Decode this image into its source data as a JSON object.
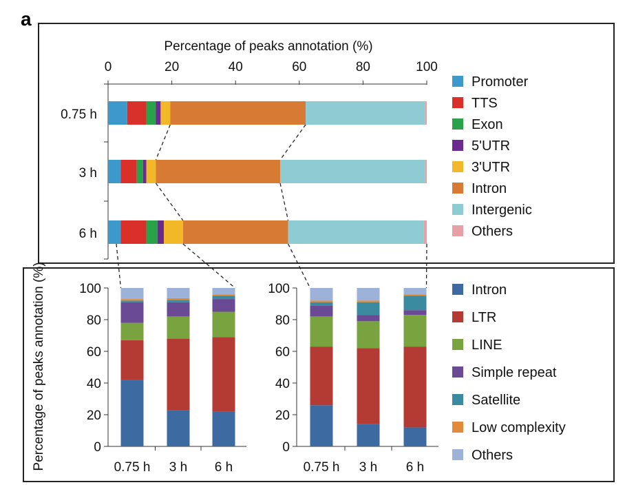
{
  "panel_label": "a",
  "chart_data": [
    {
      "type": "bar",
      "orientation": "horizontal",
      "stacked": true,
      "title": "Percentage of peaks annotation (%)",
      "xlim": [
        0,
        100
      ],
      "x_ticks": [
        "0",
        "20",
        "40",
        "60",
        "80",
        "100"
      ],
      "categories": [
        "0.75 h",
        "3 h",
        "6 h"
      ],
      "series": [
        {
          "name": "Promoter",
          "color": "#3d98cc",
          "values": [
            6,
            4,
            4
          ]
        },
        {
          "name": "TTS",
          "color": "#d9302a",
          "values": [
            6,
            5,
            8
          ]
        },
        {
          "name": "Exon",
          "color": "#2aa24a",
          "values": [
            3,
            2,
            3.5
          ]
        },
        {
          "name": "5'UTR",
          "color": "#6a2a90",
          "values": [
            1.5,
            1,
            2
          ]
        },
        {
          "name": "3'UTR",
          "color": "#f2b829",
          "values": [
            3,
            3,
            6
          ]
        },
        {
          "name": "Intron",
          "color": "#d67a34",
          "values": [
            42.5,
            39,
            33
          ]
        },
        {
          "name": "Intergenic",
          "color": "#8fcbd3",
          "values": [
            37.5,
            45.5,
            42.5
          ]
        },
        {
          "name": "Others",
          "color": "#e6a1a5",
          "values": [
            0.5,
            0.5,
            1
          ]
        }
      ]
    },
    {
      "type": "bar",
      "stacked": true,
      "ylabel": "Percentage of peaks annotation (%)",
      "ylim": [
        0,
        100
      ],
      "y_ticks": [
        "0",
        "20",
        "40",
        "60",
        "80",
        "100"
      ],
      "categories": [
        "0.75 h",
        "3 h",
        "6 h"
      ],
      "series": [
        {
          "name": "Intron",
          "color": "#3e6aa2",
          "values": [
            42,
            23,
            22
          ]
        },
        {
          "name": "LTR",
          "color": "#b43a34",
          "values": [
            25,
            45,
            47
          ]
        },
        {
          "name": "LINE",
          "color": "#79a33f",
          "values": [
            11,
            14,
            16
          ]
        },
        {
          "name": "Simple repeat",
          "color": "#6a4a94",
          "values": [
            13,
            9,
            8
          ]
        },
        {
          "name": "Satellite",
          "color": "#3a8ba0",
          "values": [
            1,
            1.5,
            2
          ]
        },
        {
          "name": "Low complexity",
          "color": "#e08a3a",
          "values": [
            1,
            1,
            1
          ]
        },
        {
          "name": "Others",
          "color": "#9db2d9",
          "values": [
            7,
            6.5,
            4
          ]
        }
      ]
    },
    {
      "type": "bar",
      "stacked": true,
      "ylim": [
        0,
        100
      ],
      "y_ticks": [
        "0",
        "20",
        "40",
        "60",
        "80",
        "100"
      ],
      "categories": [
        "0.75 h",
        "3 h",
        "6 h"
      ],
      "series": [
        {
          "name": "Intron",
          "color": "#3e6aa2",
          "values": [
            26,
            14,
            12
          ]
        },
        {
          "name": "LTR",
          "color": "#b43a34",
          "values": [
            37,
            48,
            51
          ]
        },
        {
          "name": "LINE",
          "color": "#79a33f",
          "values": [
            19,
            17,
            20
          ]
        },
        {
          "name": "Simple repeat",
          "color": "#6a4a94",
          "values": [
            7,
            4,
            3
          ]
        },
        {
          "name": "Satellite",
          "color": "#3a8ba0",
          "values": [
            2,
            8,
            9
          ]
        },
        {
          "name": "Low complexity",
          "color": "#e08a3a",
          "values": [
            1,
            1,
            1
          ]
        },
        {
          "name": "Others",
          "color": "#9db2d9",
          "values": [
            8,
            8,
            4
          ]
        }
      ]
    }
  ]
}
